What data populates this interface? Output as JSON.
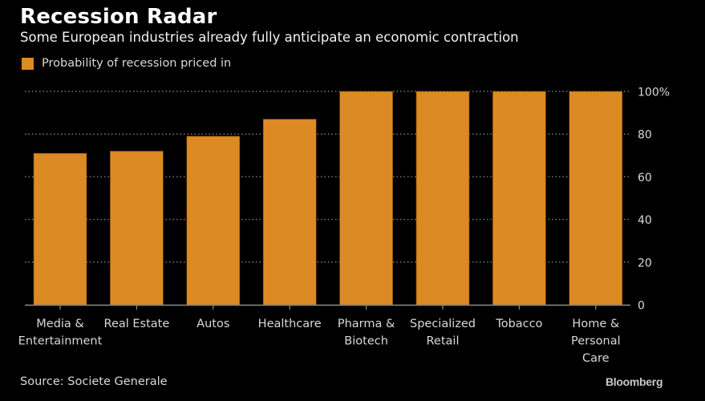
{
  "header": {
    "title": "Recession Radar",
    "subtitle": "Some European industries already fully anticipate an economic contraction"
  },
  "legend": {
    "label": "Probability of recession priced in",
    "color": "#dc8a24"
  },
  "footer": {
    "source": "Source: Societe Generale",
    "brand": "Bloomberg"
  },
  "colors": {
    "background": "#000000",
    "bar": "#dc8a24",
    "grid": "#777777",
    "axis": "#8c8c8c",
    "text": "#d9d9d9"
  },
  "chart_data": {
    "type": "bar",
    "title": "Recession Radar",
    "subtitle": "Some European industries already fully anticipate an economic contraction",
    "categories": [
      [
        "Media &",
        "Entertainment"
      ],
      [
        "Real Estate"
      ],
      [
        "Autos"
      ],
      [
        "Healthcare"
      ],
      [
        "Pharma &",
        "Biotech"
      ],
      [
        "Specialized",
        "Retail"
      ],
      [
        "Tobacco"
      ],
      [
        "Home &",
        "Personal",
        "Care"
      ]
    ],
    "series": [
      {
        "name": "Probability of recession priced in",
        "values": [
          71,
          72,
          79,
          87,
          100,
          100,
          100,
          100
        ]
      }
    ],
    "xlabel": "",
    "ylabel": "",
    "ylim": [
      0,
      100
    ],
    "yticks": [
      0,
      20,
      40,
      60,
      80,
      100
    ],
    "ytick_labels": [
      "0",
      "20",
      "40",
      "60",
      "80",
      "100%"
    ],
    "y_axis_side": "right",
    "grid": true,
    "legend_position": "top-left",
    "source": "Source: Societe Generale"
  }
}
